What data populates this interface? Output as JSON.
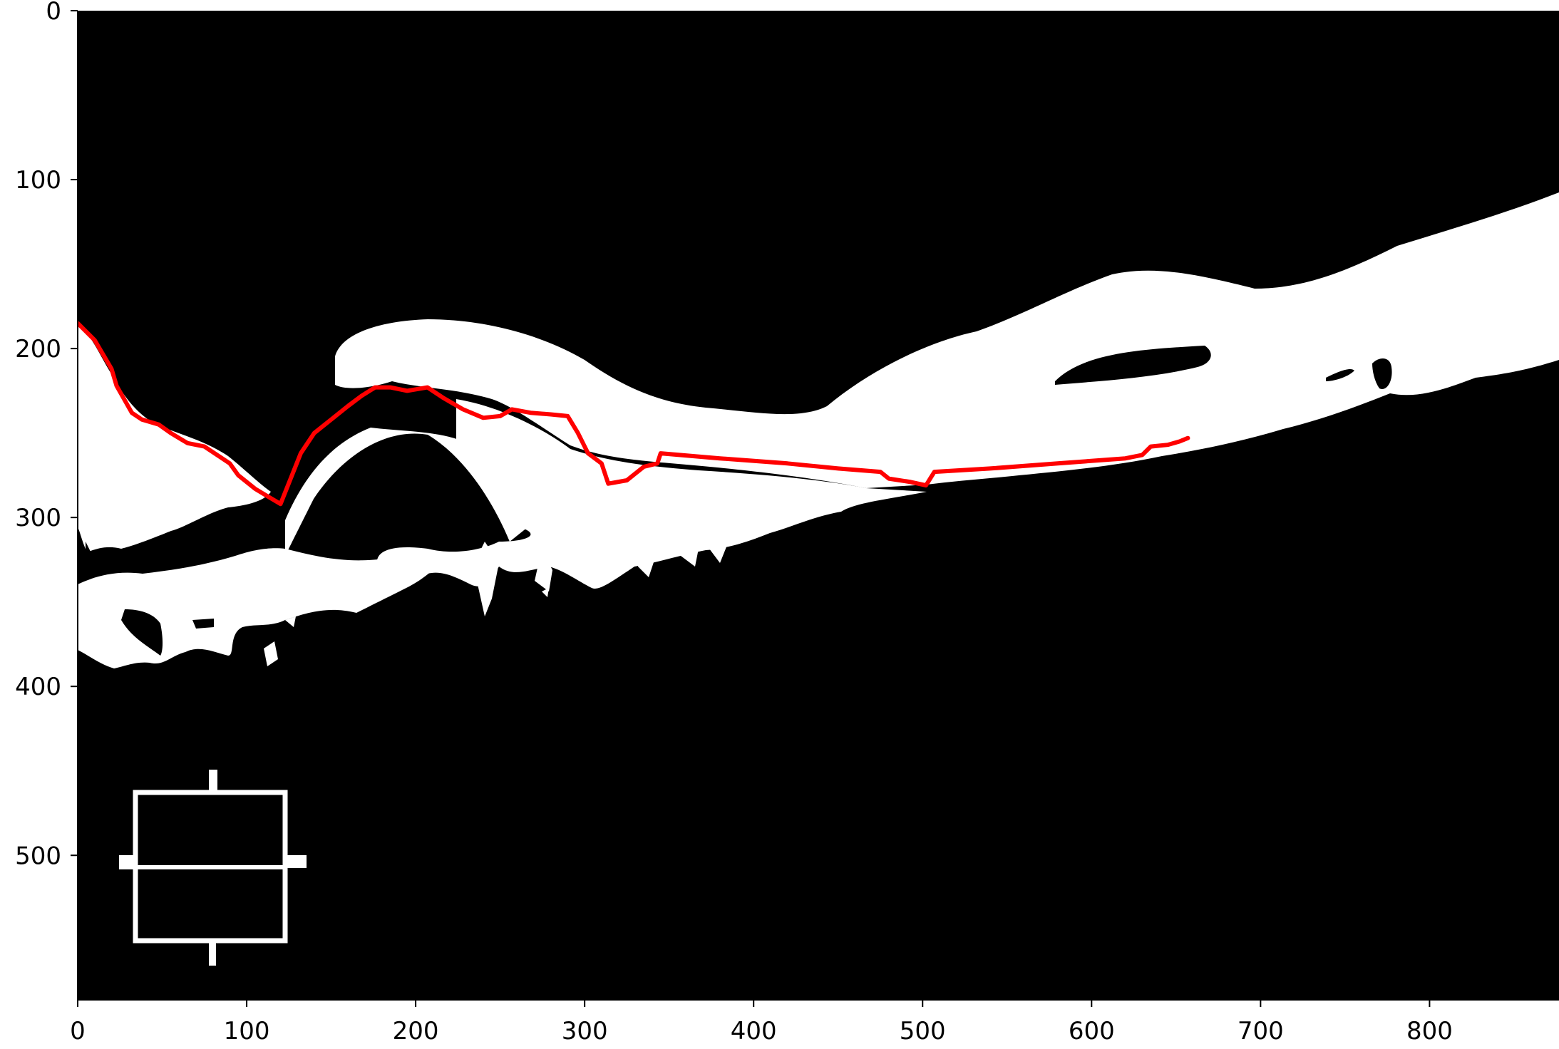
{
  "chart_data": {
    "type": "image",
    "title": "",
    "xlabel": "",
    "ylabel": "",
    "xlim": [
      0,
      875
    ],
    "ylim": [
      585,
      0
    ],
    "x_ticks": [
      0,
      100,
      200,
      300,
      400,
      500,
      600,
      700,
      800
    ],
    "y_ticks": [
      0,
      100,
      200,
      300,
      400,
      500
    ],
    "background_color": "#000000",
    "mask_color": "#ffffff",
    "series": [
      {
        "color": "#ff0000",
        "points": [
          [
            0,
            185
          ],
          [
            10,
            195
          ],
          [
            20,
            212
          ],
          [
            23,
            222
          ],
          [
            32,
            238
          ],
          [
            38,
            242
          ],
          [
            48,
            245
          ],
          [
            55,
            250
          ],
          [
            65,
            256
          ],
          [
            75,
            258
          ],
          [
            90,
            268
          ],
          [
            95,
            275
          ],
          [
            105,
            283
          ],
          [
            120,
            292
          ],
          [
            132,
            262
          ],
          [
            140,
            250
          ],
          [
            150,
            242
          ],
          [
            160,
            234
          ],
          [
            168,
            228
          ],
          [
            176,
            223
          ],
          [
            185,
            223
          ],
          [
            195,
            225
          ],
          [
            207,
            223
          ],
          [
            216,
            229
          ],
          [
            228,
            236
          ],
          [
            240,
            241
          ],
          [
            250,
            240
          ],
          [
            257,
            236
          ],
          [
            268,
            238
          ],
          [
            280,
            239
          ],
          [
            290,
            240
          ],
          [
            296,
            250
          ],
          [
            302,
            262
          ],
          [
            310,
            268
          ],
          [
            314,
            280
          ],
          [
            325,
            278
          ],
          [
            335,
            270
          ],
          [
            343,
            268
          ],
          [
            345,
            262
          ],
          [
            380,
            265
          ],
          [
            420,
            268
          ],
          [
            450,
            271
          ],
          [
            475,
            273
          ],
          [
            480,
            277
          ],
          [
            493,
            279
          ],
          [
            502,
            281
          ],
          [
            507,
            273
          ],
          [
            540,
            271
          ],
          [
            580,
            268
          ],
          [
            620,
            265
          ],
          [
            630,
            263
          ],
          [
            635,
            258
          ],
          [
            645,
            257
          ],
          [
            652,
            255
          ],
          [
            657,
            253
          ]
        ]
      }
    ]
  }
}
